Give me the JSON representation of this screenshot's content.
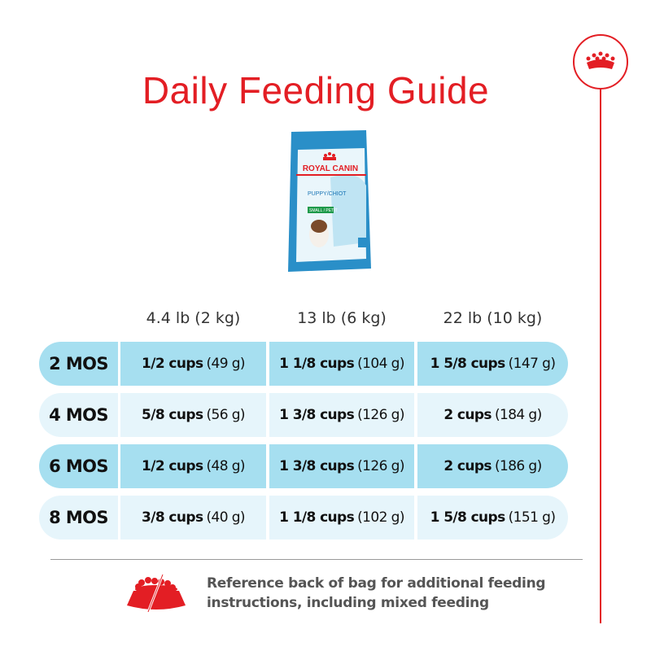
{
  "title": "Daily Feeding Guide",
  "brand": {
    "logo": "royal-canin-crown",
    "color": "#e31e24"
  },
  "product_image": {
    "brand_text": "ROYAL CANIN",
    "product_text": "PUPPY/CHIOT",
    "size_text": "SMALL / PETIT"
  },
  "table": {
    "columns": [
      "4.4 lb (2 kg)",
      "13 lb (6 kg)",
      "22 lb (10 kg)"
    ],
    "rows": [
      {
        "age": "2 MOS",
        "cells": [
          {
            "cups": "1/2 cups",
            "grams": "(49 g)"
          },
          {
            "cups": "1 1/8 cups",
            "grams": "(104 g)"
          },
          {
            "cups": "1 5/8 cups",
            "grams": "(147 g)"
          }
        ]
      },
      {
        "age": "4 MOS",
        "cells": [
          {
            "cups": "5/8 cups",
            "grams": "(56 g)"
          },
          {
            "cups": "1 3/8 cups",
            "grams": "(126 g)"
          },
          {
            "cups": "2 cups",
            "grams": "(184 g)"
          }
        ]
      },
      {
        "age": "6 MOS",
        "cells": [
          {
            "cups": "1/2 cups",
            "grams": "(48 g)"
          },
          {
            "cups": "1 3/8 cups",
            "grams": "(126 g)"
          },
          {
            "cups": "2 cups",
            "grams": "(186 g)"
          }
        ]
      },
      {
        "age": "8 MOS",
        "cells": [
          {
            "cups": "3/8 cups",
            "grams": "(40 g)"
          },
          {
            "cups": "1 1/8 cups",
            "grams": "(102 g)"
          },
          {
            "cups": "1 5/8 cups",
            "grams": "(151 g)"
          }
        ]
      }
    ],
    "colors": {
      "dark_row": "#a6dff0",
      "light_row": "#e6f5fb"
    }
  },
  "note": {
    "line1": "Reference back of bag for additional feeding",
    "line2": "instructions, including mixed feeding",
    "icon": "food-bowl-icon"
  }
}
